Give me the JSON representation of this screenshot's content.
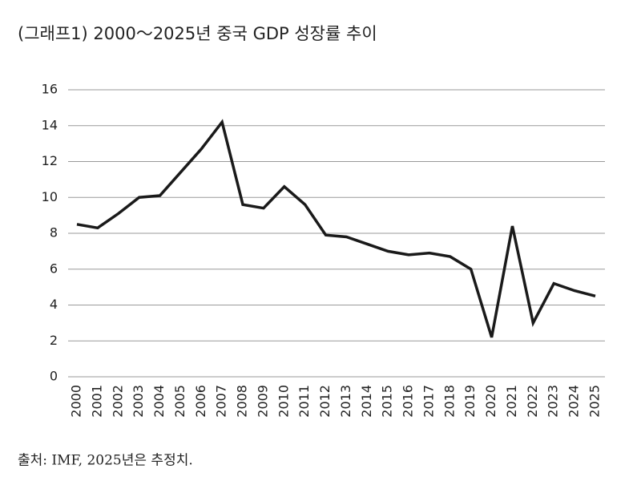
{
  "chart_data": {
    "type": "line",
    "title": "(그래프1) 2000～2025년 중국 GDP 성장률 추이",
    "source": "출처: IMF, 2025년은 추정치.",
    "categories": [
      "2000",
      "2001",
      "2002",
      "2003",
      "2004",
      "2005",
      "2006",
      "2007",
      "2008",
      "2009",
      "2010",
      "2011",
      "2012",
      "2013",
      "2014",
      "2015",
      "2016",
      "2017",
      "2018",
      "2019",
      "2020",
      "2021",
      "2022",
      "2023",
      "2024",
      "2025"
    ],
    "values": [
      8.5,
      8.3,
      9.1,
      10.0,
      10.1,
      11.4,
      12.7,
      14.2,
      9.6,
      9.4,
      10.6,
      9.6,
      7.9,
      7.8,
      7.4,
      7.0,
      6.8,
      6.9,
      6.7,
      6.0,
      2.2,
      8.4,
      3.0,
      5.2,
      4.8,
      4.5
    ],
    "color": "#1a1a1a",
    "ylim": [
      0,
      16
    ],
    "yticks": [
      0,
      2,
      4,
      6,
      8,
      10,
      12,
      14,
      16
    ],
    "grid": true
  }
}
